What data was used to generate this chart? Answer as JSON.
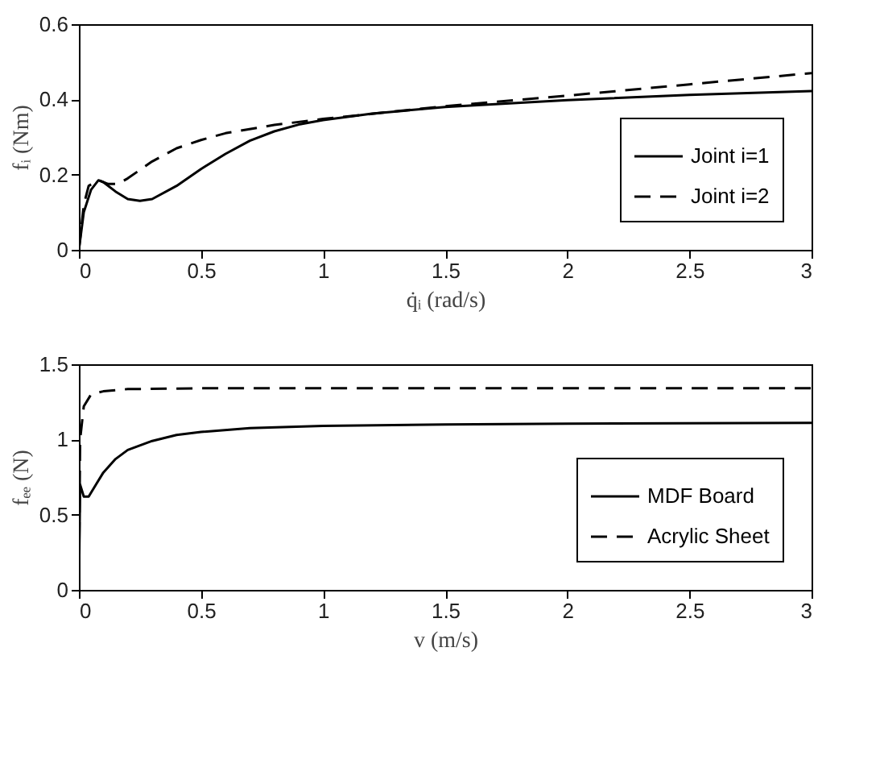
{
  "chart_data": [
    {
      "type": "line",
      "xlabel": "q̇ᵢ (rad/s)",
      "ylabel": "fᵢ (Nm)",
      "xlim": [
        0,
        3
      ],
      "ylim": [
        0,
        0.6
      ],
      "xticks": [
        0,
        0.5,
        1,
        1.5,
        2,
        2.5,
        3
      ],
      "yticks": [
        0,
        0.2,
        0.4,
        0.6
      ],
      "grid": false,
      "legend": "bottom right",
      "series": [
        {
          "name": "Joint i=1",
          "color": "#000000",
          "line_style": "solid",
          "x": [
            0,
            0.02,
            0.05,
            0.08,
            0.1,
            0.15,
            0.2,
            0.25,
            0.3,
            0.4,
            0.5,
            0.6,
            0.7,
            0.8,
            0.9,
            1.0,
            1.2,
            1.5,
            2.0,
            2.5,
            3.0
          ],
          "values": [
            0,
            0.1,
            0.16,
            0.185,
            0.18,
            0.155,
            0.135,
            0.13,
            0.135,
            0.17,
            0.215,
            0.255,
            0.29,
            0.315,
            0.333,
            0.345,
            0.362,
            0.38,
            0.398,
            0.412,
            0.422
          ]
        },
        {
          "name": "Joint i=2",
          "color": "#000000",
          "line_style": "dashed",
          "x": [
            0,
            0.02,
            0.04,
            0.08,
            0.12,
            0.16,
            0.2,
            0.3,
            0.4,
            0.5,
            0.6,
            0.8,
            1.0,
            1.5,
            2.0,
            2.5,
            3.0
          ],
          "values": [
            0,
            0.12,
            0.17,
            0.185,
            0.175,
            0.175,
            0.19,
            0.235,
            0.27,
            0.292,
            0.31,
            0.332,
            0.348,
            0.382,
            0.41,
            0.44,
            0.47
          ]
        }
      ]
    },
    {
      "type": "line",
      "xlabel": "v (m/s)",
      "ylabel": "fₑₑ (N)",
      "xlim": [
        0,
        3
      ],
      "ylim": [
        0,
        1.5
      ],
      "xticks": [
        0,
        0.5,
        1,
        1.5,
        2,
        2.5,
        3
      ],
      "yticks": [
        0,
        0.5,
        1,
        1.5
      ],
      "grid": false,
      "legend": "bottom right",
      "series": [
        {
          "name": "MDF Board",
          "color": "#000000",
          "line_style": "solid",
          "x": [
            0,
            0.005,
            0.02,
            0.04,
            0.07,
            0.1,
            0.15,
            0.2,
            0.3,
            0.4,
            0.5,
            0.7,
            1.0,
            1.5,
            2.0,
            3.0
          ],
          "values": [
            0,
            0.7,
            0.62,
            0.62,
            0.7,
            0.78,
            0.87,
            0.93,
            0.99,
            1.03,
            1.05,
            1.075,
            1.09,
            1.1,
            1.105,
            1.11
          ]
        },
        {
          "name": "Acrylic Sheet",
          "color": "#000000",
          "line_style": "dashed",
          "x": [
            0,
            0.005,
            0.02,
            0.05,
            0.1,
            0.2,
            0.5,
            3.0
          ],
          "values": [
            0,
            1.0,
            1.22,
            1.3,
            1.32,
            1.335,
            1.34,
            1.34
          ]
        }
      ]
    }
  ]
}
